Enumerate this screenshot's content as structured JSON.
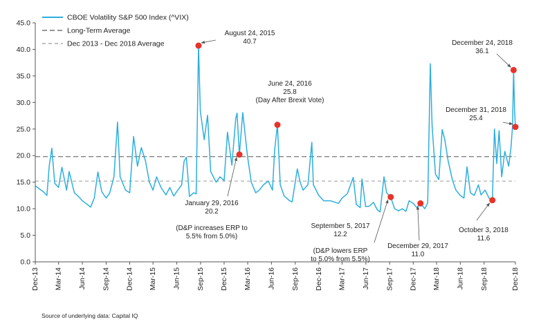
{
  "chart_data": {
    "type": "line",
    "ylim": [
      0,
      45
    ],
    "yticks": [
      "0.0",
      "5.0",
      "10.0",
      "15.0",
      "20.0",
      "25.0",
      "30.0",
      "35.0",
      "40.0",
      "45.0"
    ],
    "xticks": [
      "Dec-13",
      "Mar-14",
      "Jun-14",
      "Sep-14",
      "Dec-14",
      "Mar-15",
      "Jun-15",
      "Sep-15",
      "Dec-15",
      "Mar-16",
      "Jun-16",
      "Sep-16",
      "Dec-16",
      "Mar-17",
      "Jun-17",
      "Sep-17",
      "Dec-17",
      "Mar-18",
      "Jun-18",
      "Sep-18",
      "Dec-18"
    ],
    "grid": false,
    "legend_position": "top-left",
    "colors": {
      "vix": "#2BAEDF",
      "long_term": "#555555",
      "period_avg": "#999999",
      "marker": "#E8332A",
      "arrow": "#555555"
    },
    "legend": [
      {
        "label": "CBOE Volatility S&P 500 Index (^VIX)",
        "style": "solid",
        "color": "#2BAEDF"
      },
      {
        "label": "Long-Term Average",
        "style": "dash",
        "color": "#555555"
      },
      {
        "label": "Dec 2013 - Dec 2018 Average",
        "style": "dash-light",
        "color": "#999999"
      }
    ],
    "reference_lines": [
      {
        "name": "Long-Term Average",
        "value": 19.8
      },
      {
        "name": "Dec 2013 - Dec 2018 Average",
        "value": 15.2
      }
    ],
    "series": [
      {
        "name": "CBOE Volatility S&P 500 Index (^VIX)",
        "points": [
          [
            "2013-12-01",
            14.3
          ],
          [
            "2013-12-15",
            13.8
          ],
          [
            "2014-01-01",
            13.2
          ],
          [
            "2014-01-15",
            12.5
          ],
          [
            "2014-01-24",
            18.1
          ],
          [
            "2014-02-03",
            21.4
          ],
          [
            "2014-02-14",
            14.8
          ],
          [
            "2014-03-01",
            14.0
          ],
          [
            "2014-03-14",
            17.8
          ],
          [
            "2014-04-01",
            13.5
          ],
          [
            "2014-04-11",
            17.0
          ],
          [
            "2014-05-01",
            13.0
          ],
          [
            "2014-05-15",
            12.4
          ],
          [
            "2014-06-01",
            11.5
          ],
          [
            "2014-06-20",
            10.8
          ],
          [
            "2014-07-03",
            10.3
          ],
          [
            "2014-07-17",
            12.0
          ],
          [
            "2014-07-31",
            16.9
          ],
          [
            "2014-08-15",
            13.2
          ],
          [
            "2014-09-01",
            12.0
          ],
          [
            "2014-09-15",
            13.0
          ],
          [
            "2014-10-01",
            16.0
          ],
          [
            "2014-10-15",
            26.3
          ],
          [
            "2014-10-25",
            16.0
          ],
          [
            "2014-11-15",
            13.5
          ],
          [
            "2014-12-01",
            13.0
          ],
          [
            "2014-12-16",
            23.6
          ],
          [
            "2014-12-31",
            18.0
          ],
          [
            "2015-01-15",
            21.5
          ],
          [
            "2015-01-31",
            19.0
          ],
          [
            "2015-02-15",
            15.0
          ],
          [
            "2015-03-01",
            13.5
          ],
          [
            "2015-03-15",
            16.0
          ],
          [
            "2015-04-01",
            14.0
          ],
          [
            "2015-04-20",
            12.6
          ],
          [
            "2015-05-05",
            14.0
          ],
          [
            "2015-05-20",
            12.4
          ],
          [
            "2015-06-05",
            13.5
          ],
          [
            "2015-06-20",
            14.5
          ],
          [
            "2015-06-29",
            18.9
          ],
          [
            "2015-07-08",
            19.7
          ],
          [
            "2015-07-20",
            12.3
          ],
          [
            "2015-08-05",
            13.0
          ],
          [
            "2015-08-15",
            12.8
          ],
          [
            "2015-08-24",
            40.7
          ],
          [
            "2015-08-31",
            28.4
          ],
          [
            "2015-09-15",
            23.0
          ],
          [
            "2015-09-28",
            27.6
          ],
          [
            "2015-10-10",
            17.0
          ],
          [
            "2015-10-31",
            15.0
          ],
          [
            "2015-11-15",
            16.0
          ],
          [
            "2015-12-01",
            15.3
          ],
          [
            "2015-12-14",
            24.4
          ],
          [
            "2015-12-31",
            18.2
          ],
          [
            "2016-01-15",
            27.0
          ],
          [
            "2016-01-20",
            28.0
          ],
          [
            "2016-01-29",
            20.2
          ],
          [
            "2016-02-11",
            28.1
          ],
          [
            "2016-02-29",
            20.0
          ],
          [
            "2016-03-15",
            15.0
          ],
          [
            "2016-04-01",
            13.0
          ],
          [
            "2016-04-15",
            13.5
          ],
          [
            "2016-05-01",
            14.5
          ],
          [
            "2016-05-20",
            15.2
          ],
          [
            "2016-06-05",
            13.5
          ],
          [
            "2016-06-13",
            20.9
          ],
          [
            "2016-06-24",
            25.8
          ],
          [
            "2016-07-05",
            14.5
          ],
          [
            "2016-07-20",
            12.4
          ],
          [
            "2016-08-10",
            11.5
          ],
          [
            "2016-08-20",
            11.3
          ],
          [
            "2016-09-09",
            17.5
          ],
          [
            "2016-09-20",
            15.0
          ],
          [
            "2016-10-01",
            13.5
          ],
          [
            "2016-10-20",
            14.5
          ],
          [
            "2016-11-04",
            22.5
          ],
          [
            "2016-11-10",
            14.5
          ],
          [
            "2016-12-01",
            12.5
          ],
          [
            "2016-12-20",
            11.5
          ],
          [
            "2017-01-15",
            11.5
          ],
          [
            "2017-02-15",
            11.0
          ],
          [
            "2017-03-01",
            12.0
          ],
          [
            "2017-03-21",
            12.8
          ],
          [
            "2017-04-13",
            15.9
          ],
          [
            "2017-04-25",
            10.8
          ],
          [
            "2017-05-10",
            10.2
          ],
          [
            "2017-05-17",
            15.6
          ],
          [
            "2017-05-31",
            10.4
          ],
          [
            "2017-06-15",
            10.5
          ],
          [
            "2017-06-30",
            11.2
          ],
          [
            "2017-07-15",
            9.8
          ],
          [
            "2017-07-26",
            9.4
          ],
          [
            "2017-08-10",
            16.0
          ],
          [
            "2017-08-20",
            13.0
          ],
          [
            "2017-09-05",
            12.2
          ],
          [
            "2017-09-20",
            10.0
          ],
          [
            "2017-10-05",
            9.6
          ],
          [
            "2017-10-20",
            10.0
          ],
          [
            "2017-11-03",
            9.5
          ],
          [
            "2017-11-15",
            11.5
          ],
          [
            "2017-12-01",
            11.0
          ],
          [
            "2017-12-15",
            10.2
          ],
          [
            "2017-12-29",
            11.0
          ],
          [
            "2018-01-15",
            10.0
          ],
          [
            "2018-01-26",
            11.1
          ],
          [
            "2018-02-05",
            37.3
          ],
          [
            "2018-02-12",
            25.6
          ],
          [
            "2018-02-25",
            16.5
          ],
          [
            "2018-03-10",
            15.5
          ],
          [
            "2018-03-23",
            24.9
          ],
          [
            "2018-04-02",
            23.0
          ],
          [
            "2018-04-15",
            19.0
          ],
          [
            "2018-05-01",
            15.5
          ],
          [
            "2018-05-15",
            13.5
          ],
          [
            "2018-06-01",
            12.5
          ],
          [
            "2018-06-15",
            12.0
          ],
          [
            "2018-06-27",
            17.9
          ],
          [
            "2018-07-10",
            13.0
          ],
          [
            "2018-07-25",
            12.5
          ],
          [
            "2018-08-10",
            14.5
          ],
          [
            "2018-08-20",
            12.6
          ],
          [
            "2018-09-05",
            13.5
          ],
          [
            "2018-09-20",
            12.0
          ],
          [
            "2018-10-03",
            11.6
          ],
          [
            "2018-10-11",
            25.0
          ],
          [
            "2018-10-20",
            18.5
          ],
          [
            "2018-10-29",
            24.7
          ],
          [
            "2018-11-08",
            16.0
          ],
          [
            "2018-11-20",
            20.8
          ],
          [
            "2018-12-05",
            18.0
          ],
          [
            "2018-12-14",
            21.6
          ],
          [
            "2018-12-20",
            25.6
          ],
          [
            "2018-12-24",
            36.1
          ],
          [
            "2018-12-28",
            28.3
          ],
          [
            "2018-12-31",
            25.4
          ]
        ]
      }
    ],
    "annotations": [
      {
        "date": "2015-08-24",
        "value": 40.7,
        "lines": [
          "August 24, 2015",
          "40.7"
        ]
      },
      {
        "date": "2016-01-29",
        "value": 20.2,
        "lines": [
          "January 29, 2016",
          "20.2",
          "",
          "(D&P increases ERP to",
          "5.5% from 5.0%)"
        ]
      },
      {
        "date": "2016-06-24",
        "value": 25.8,
        "lines": [
          "June 24, 2016",
          "25.8",
          "(Day After Brexit Vote)"
        ]
      },
      {
        "date": "2017-09-05",
        "value": 12.2,
        "lines": [
          "September 5, 2017",
          "12.2",
          "",
          "(D&P lowers ERP",
          "to 5.0% from 5.5%)"
        ]
      },
      {
        "date": "2017-12-29",
        "value": 11.0,
        "lines": [
          "December 29, 2017",
          "11.0"
        ]
      },
      {
        "date": "2018-10-03",
        "value": 11.6,
        "lines": [
          "October 3, 2018",
          "11.6"
        ]
      },
      {
        "date": "2018-12-24",
        "value": 36.1,
        "lines": [
          "December 24, 2018",
          "36.1"
        ]
      },
      {
        "date": "2018-12-31",
        "value": 25.4,
        "lines": [
          "December 31, 2018",
          "25.4"
        ]
      }
    ]
  },
  "source_note": "Source of underlying data: Capital IQ"
}
